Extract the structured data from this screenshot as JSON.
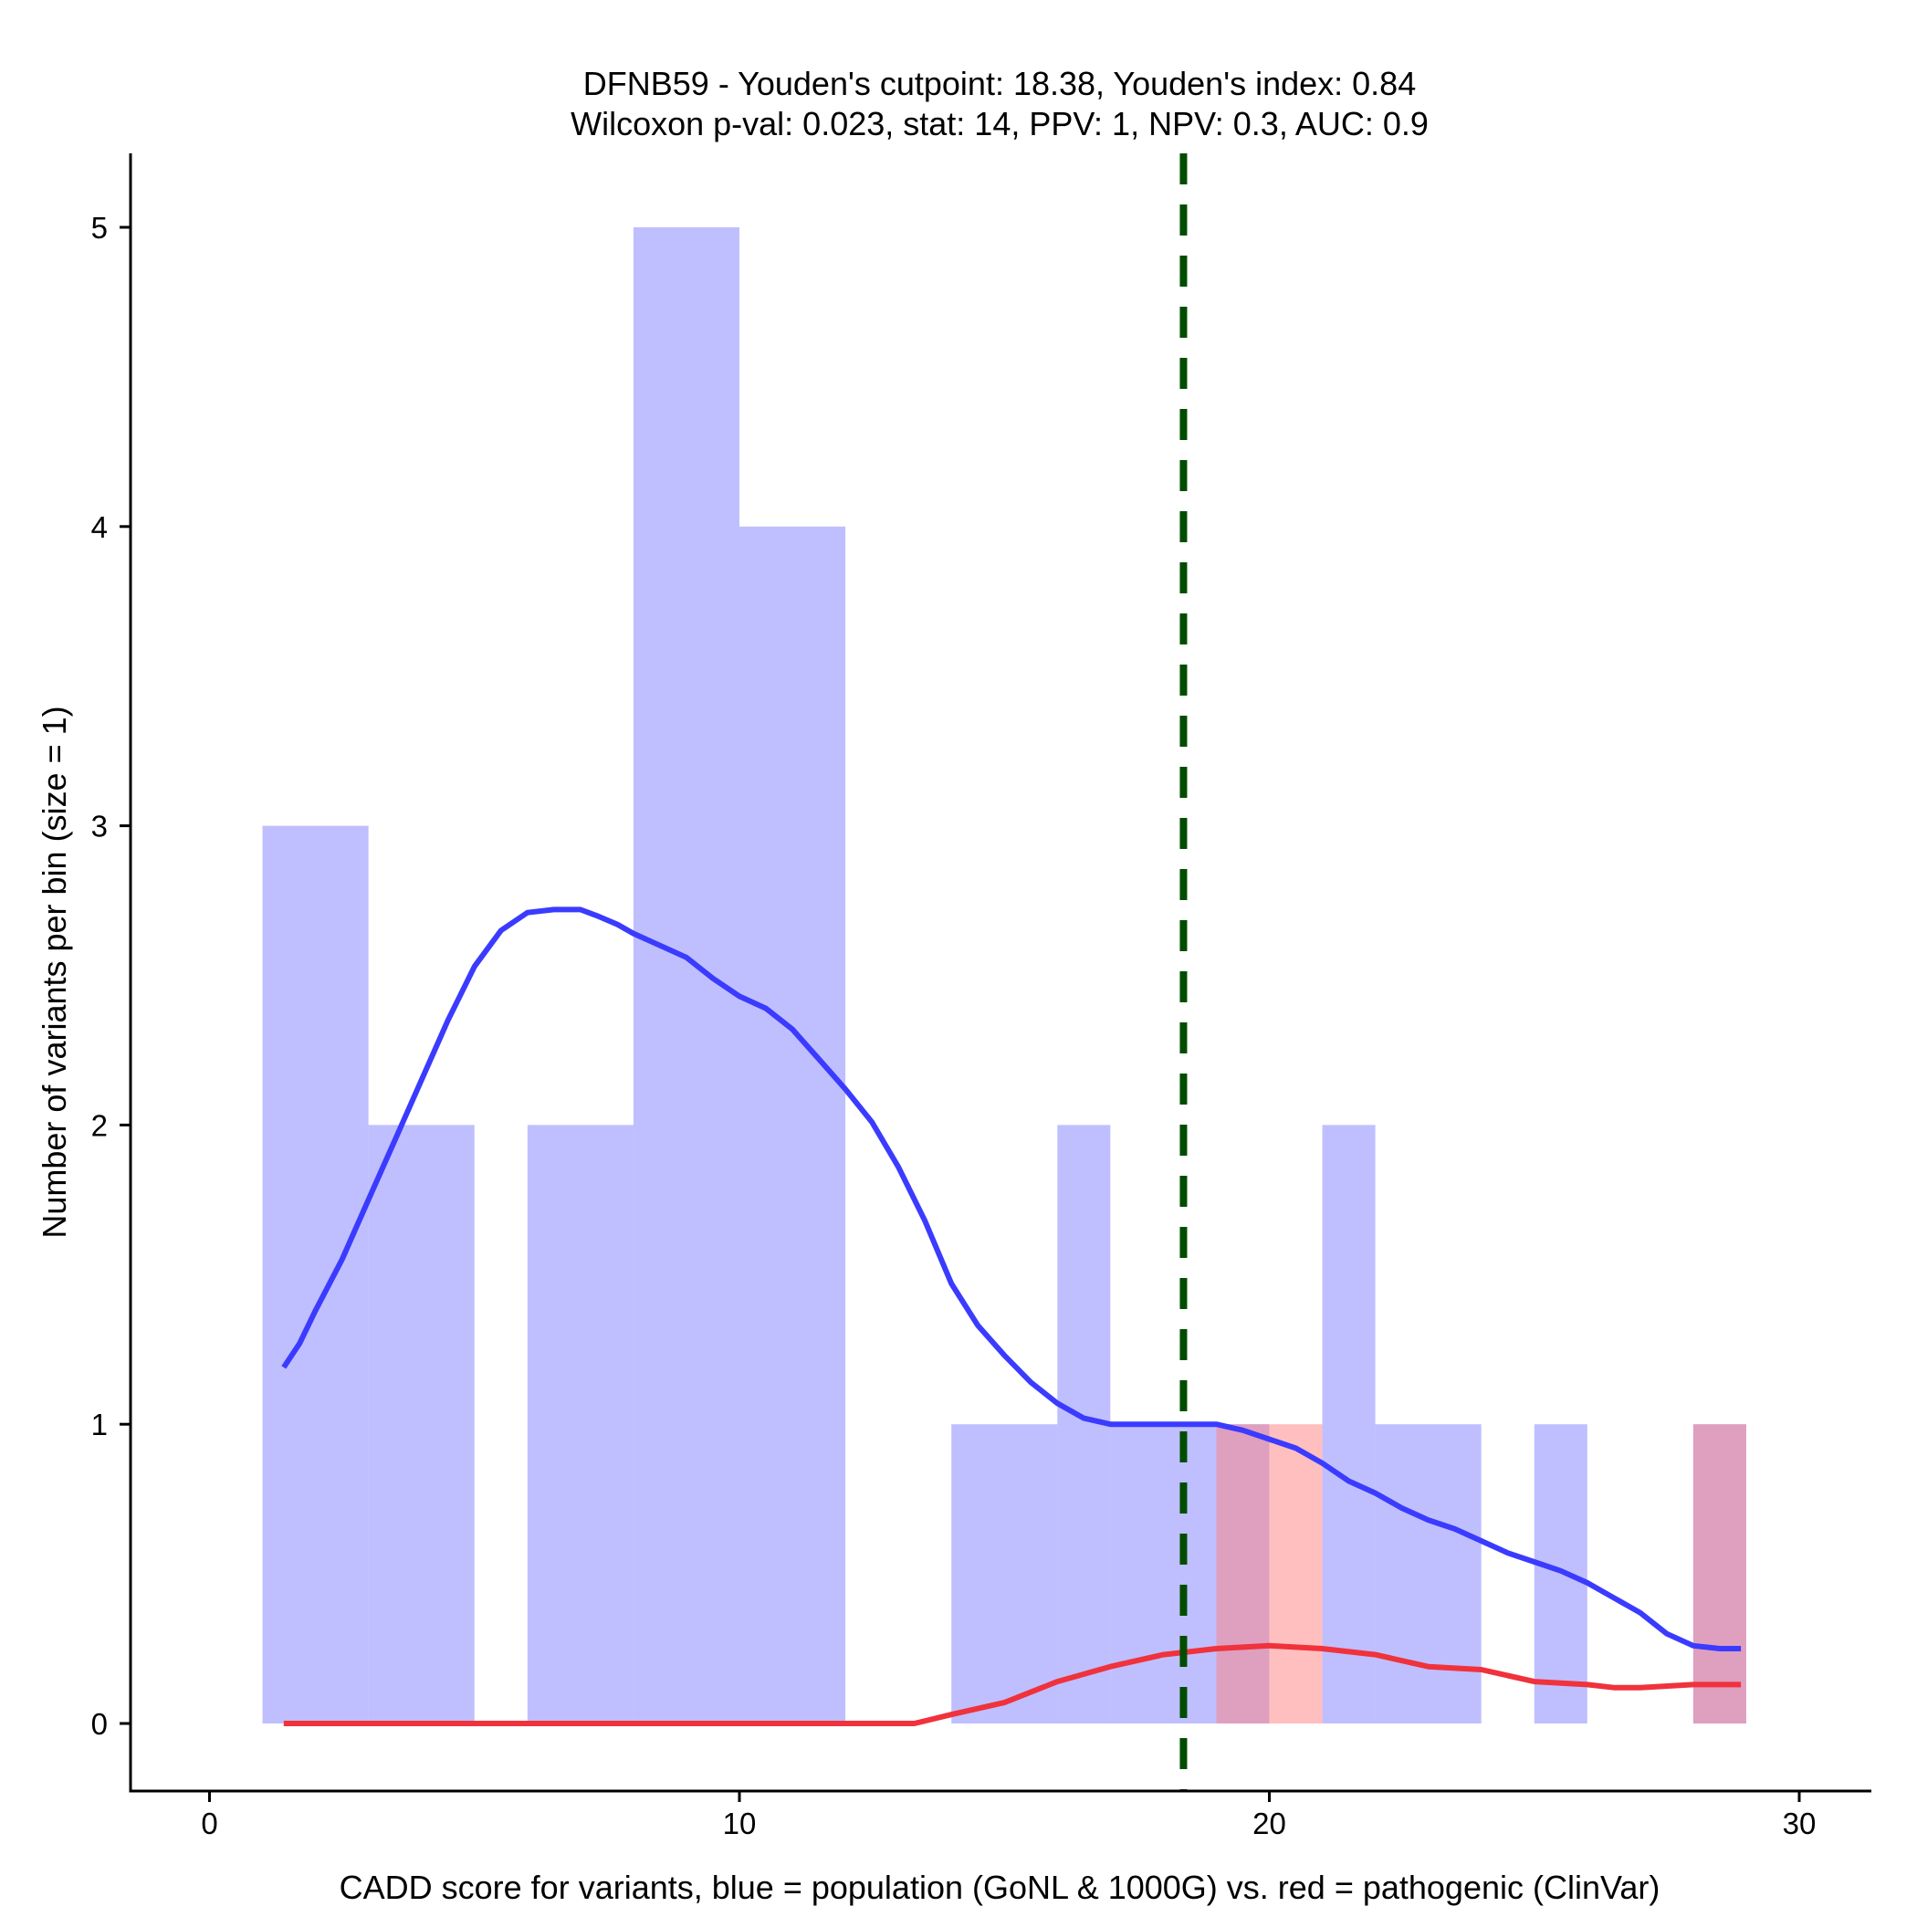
{
  "chart_data": {
    "type": "bar",
    "title_lines": [
      "DFNB59 - Youden's cutpoint: 18.38, Youden's index: 0.84",
      "Wilcoxon p-val: 0.023, stat: 14, PPV: 1, NPV: 0.3, AUC: 0.9"
    ],
    "xlabel": "CADD score for variants, blue = population (GoNL & 1000G) vs. red = pathogenic (ClinVar)",
    "ylabel": "Number of variants per bin (size = 1)",
    "xlim": [
      -1.5,
      31.5
    ],
    "ylim": [
      -0.25,
      5.25
    ],
    "xticks": [
      0,
      10,
      20,
      30
    ],
    "yticks": [
      0,
      1,
      2,
      3,
      4,
      5
    ],
    "bin_size": 1,
    "cutpoint": 18.38,
    "colors": {
      "population": "#8080ff",
      "population_bar_opacity": 0.5,
      "pathogenic": "#ff8080",
      "pathogenic_bar_opacity": 0.5,
      "population_density": "#3b3bff",
      "pathogenic_density": "#f0323c",
      "cutpoint": "#004d00"
    },
    "series": [
      {
        "name": "population (GoNL & 1000G)",
        "bins": [
          {
            "x0": 1,
            "x1": 3,
            "count": 3
          },
          {
            "x0": 3,
            "x1": 5,
            "count": 2
          },
          {
            "x0": 6,
            "x1": 8,
            "count": 2
          },
          {
            "x0": 8,
            "x1": 10,
            "count": 5
          },
          {
            "x0": 10,
            "x1": 12,
            "count": 4
          },
          {
            "x0": 14,
            "x1": 16,
            "count": 1
          },
          {
            "x0": 16,
            "x1": 17,
            "count": 2
          },
          {
            "x0": 17,
            "x1": 19,
            "count": 1
          },
          {
            "x0": 19,
            "x1": 20,
            "count": 1
          },
          {
            "x0": 21,
            "x1": 22,
            "count": 2
          },
          {
            "x0": 22,
            "x1": 24,
            "count": 1
          },
          {
            "x0": 25,
            "x1": 26,
            "count": 1
          },
          {
            "x0": 28,
            "x1": 29,
            "count": 1
          }
        ]
      },
      {
        "name": "pathogenic (ClinVar)",
        "bins": [
          {
            "x0": 19,
            "x1": 20,
            "count": 1
          },
          {
            "x0": 20,
            "x1": 21,
            "count": 1
          },
          {
            "x0": 28,
            "x1": 29,
            "count": 1
          }
        ]
      }
    ],
    "density_lines": [
      {
        "name": "population density",
        "x": [
          1.4,
          1.7,
          2.0,
          2.5,
          3.0,
          3.5,
          4.0,
          4.5,
          5.0,
          5.5,
          6.0,
          6.5,
          7.0,
          7.3,
          7.7,
          8.0,
          8.5,
          9.0,
          9.5,
          10.0,
          10.5,
          11.0,
          11.5,
          12.0,
          12.5,
          13.0,
          13.5,
          14.0,
          14.5,
          15.0,
          15.5,
          16.0,
          16.5,
          17.0,
          17.5,
          18.0,
          18.5,
          19.0,
          19.5,
          20.0,
          20.5,
          21.0,
          21.5,
          22.0,
          22.5,
          23.0,
          23.5,
          24.0,
          24.5,
          25.0,
          25.5,
          26.0,
          26.5,
          27.0,
          27.5,
          28.0,
          28.5,
          28.9
        ],
        "y": [
          1.19,
          1.27,
          1.38,
          1.55,
          1.75,
          1.95,
          2.15,
          2.35,
          2.53,
          2.65,
          2.71,
          2.72,
          2.72,
          2.7,
          2.67,
          2.64,
          2.6,
          2.56,
          2.49,
          2.43,
          2.39,
          2.32,
          2.22,
          2.12,
          2.01,
          1.86,
          1.68,
          1.47,
          1.33,
          1.23,
          1.14,
          1.07,
          1.02,
          1.0,
          1.0,
          1.0,
          1.0,
          1.0,
          0.98,
          0.95,
          0.92,
          0.87,
          0.81,
          0.77,
          0.72,
          0.68,
          0.65,
          0.61,
          0.57,
          0.54,
          0.51,
          0.47,
          0.42,
          0.37,
          0.3,
          0.26,
          0.25,
          0.25
        ]
      },
      {
        "name": "pathogenic density",
        "x": [
          1.4,
          13.0,
          13.3,
          14.0,
          15.0,
          16.0,
          17.0,
          18.0,
          19.0,
          20.0,
          21.0,
          22.0,
          23.0,
          24.0,
          25.0,
          26.0,
          26.5,
          27.0,
          28.0,
          28.9
        ],
        "y": [
          0.0,
          0.0,
          0.0,
          0.03,
          0.07,
          0.14,
          0.19,
          0.23,
          0.25,
          0.26,
          0.25,
          0.23,
          0.19,
          0.18,
          0.14,
          0.13,
          0.12,
          0.12,
          0.13,
          0.13
        ]
      }
    ]
  }
}
